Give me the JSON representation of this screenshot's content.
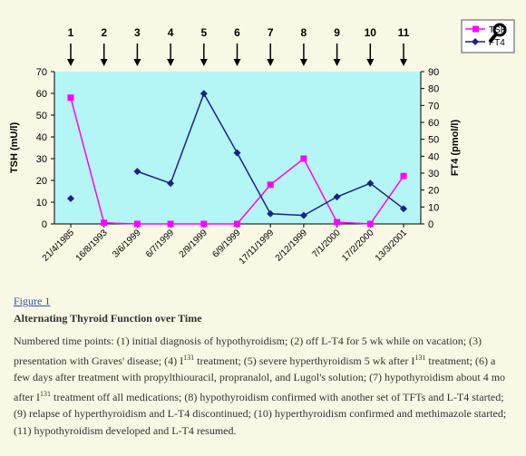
{
  "chart_data": {
    "type": "line",
    "categories": [
      "21/4/1985",
      "16/8/1993",
      "3/6/1999",
      "6/7/1999",
      "2/9/1999",
      "6/9/1999",
      "17/11/1999",
      "2/12/1999",
      "7/1/2000",
      "17/2/2000",
      "13/3/2001"
    ],
    "time_point_labels": [
      "1",
      "2",
      "3",
      "4",
      "5",
      "6",
      "7",
      "8",
      "9",
      "10",
      "11"
    ],
    "ylabel_left": "TSH (mU/l)",
    "ylabel_right": "FT4 (pmol/l)",
    "ylim_left": [
      0,
      70
    ],
    "ylim_right": [
      0,
      90
    ],
    "yticks_left": [
      0,
      10,
      20,
      30,
      40,
      50,
      60,
      70
    ],
    "yticks_right": [
      0,
      10,
      20,
      30,
      40,
      50,
      60,
      70,
      80,
      90
    ],
    "plot_background": "#b4f5f5",
    "series": [
      {
        "name": "TSH",
        "axis": "left",
        "color": "#ff00ff",
        "marker": "square",
        "values": [
          58,
          0.5,
          0,
          0,
          0,
          0,
          18,
          30,
          0.8,
          0,
          22
        ]
      },
      {
        "name": "FT4",
        "axis": "right",
        "color": "#1a237e",
        "marker": "diamond",
        "values": [
          15,
          null,
          31,
          24,
          77,
          42,
          6,
          5,
          16,
          24,
          9
        ]
      }
    ],
    "legend_position": "top-right"
  },
  "figure": {
    "link_text": "Figure 1",
    "title": "Alternating Thyroid Function over Time",
    "caption_parts": [
      "Numbered time points: (1) initial diagnosis of hypothyroidism; (2) off L-T4 for 5 wk while on vacation; (3) presentation with Graves' disease; (4) I",
      "131",
      " treatment; (5) severe hyperthyroidism 5 wk after I",
      "131",
      " treatment; (6) a few days after treatment with propylthiouracil, propranalol, and Lugol's solution; (7) hypothyroidism about 4 mo after I",
      "131",
      " treatment off all medications; (8) hypothyroidism confirmed with another set of TFTs and L-T4 started; (9) relapse of hyperthyroidism and L-T4 discontinued; (10) hyperthyroidism confirmed and methimazole started; (11) hypothyroidism developed and L-T4 resumed."
    ]
  }
}
